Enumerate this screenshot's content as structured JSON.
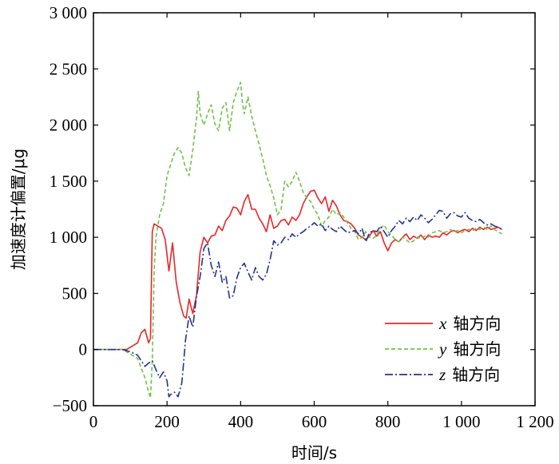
{
  "chart_data": {
    "type": "line",
    "xlabel": "时间/s",
    "ylabel": "加速度计偏置/μg",
    "xlim": [
      0,
      1200
    ],
    "ylim": [
      -500,
      3000
    ],
    "x_ticks": [
      0,
      200,
      400,
      600,
      800,
      1000,
      1200
    ],
    "x_tick_labels": [
      "0",
      "200",
      "400",
      "600",
      "800",
      "1 000",
      "1 200"
    ],
    "y_ticks": [
      -500,
      0,
      500,
      1000,
      1500,
      2000,
      2500,
      3000
    ],
    "y_tick_labels": [
      "−500",
      "0",
      "500",
      "1 000",
      "1 500",
      "2 000",
      "2 500",
      "3 000"
    ],
    "grid": false,
    "legend_position": "bottom-right",
    "legend_suffix": "轴方向",
    "series": [
      {
        "name": "x",
        "color": "#e8262a",
        "dash": "solid",
        "points": [
          [
            0,
            0
          ],
          [
            90,
            0
          ],
          [
            120,
            60
          ],
          [
            130,
            150
          ],
          [
            140,
            180
          ],
          [
            150,
            60
          ],
          [
            155,
            100
          ],
          [
            160,
            1050
          ],
          [
            165,
            1120
          ],
          [
            175,
            1100
          ],
          [
            185,
            1080
          ],
          [
            195,
            980
          ],
          [
            205,
            700
          ],
          [
            215,
            950
          ],
          [
            225,
            600
          ],
          [
            235,
            420
          ],
          [
            245,
            300
          ],
          [
            252,
            280
          ],
          [
            260,
            450
          ],
          [
            270,
            320
          ],
          [
            280,
            480
          ],
          [
            290,
            870
          ],
          [
            300,
            1000
          ],
          [
            310,
            950
          ],
          [
            320,
            1010
          ],
          [
            330,
            1020
          ],
          [
            340,
            1100
          ],
          [
            350,
            1060
          ],
          [
            360,
            1150
          ],
          [
            370,
            1190
          ],
          [
            380,
            1270
          ],
          [
            390,
            1260
          ],
          [
            400,
            1200
          ],
          [
            410,
            1320
          ],
          [
            420,
            1380
          ],
          [
            430,
            1250
          ],
          [
            440,
            1250
          ],
          [
            450,
            1170
          ],
          [
            460,
            1120
          ],
          [
            470,
            1050
          ],
          [
            480,
            1200
          ],
          [
            490,
            1080
          ],
          [
            500,
            1100
          ],
          [
            510,
            1150
          ],
          [
            520,
            1160
          ],
          [
            530,
            1110
          ],
          [
            540,
            1180
          ],
          [
            550,
            1150
          ],
          [
            560,
            1200
          ],
          [
            570,
            1300
          ],
          [
            580,
            1360
          ],
          [
            590,
            1410
          ],
          [
            600,
            1420
          ],
          [
            610,
            1350
          ],
          [
            620,
            1300
          ],
          [
            630,
            1360
          ],
          [
            640,
            1230
          ],
          [
            650,
            1330
          ],
          [
            660,
            1280
          ],
          [
            670,
            1200
          ],
          [
            680,
            1150
          ],
          [
            690,
            1140
          ],
          [
            700,
            1120
          ],
          [
            710,
            1080
          ],
          [
            720,
            1020
          ],
          [
            730,
            1000
          ],
          [
            740,
            980
          ],
          [
            750,
            1010
          ],
          [
            760,
            1060
          ],
          [
            770,
            1010
          ],
          [
            780,
            1050
          ],
          [
            790,
            950
          ],
          [
            800,
            880
          ],
          [
            810,
            950
          ],
          [
            820,
            980
          ],
          [
            830,
            960
          ],
          [
            840,
            1000
          ],
          [
            850,
            1030
          ],
          [
            860,
            980
          ],
          [
            870,
            1010
          ],
          [
            880,
            990
          ],
          [
            890,
            1020
          ],
          [
            900,
            980
          ],
          [
            910,
            1020
          ],
          [
            920,
            1000
          ],
          [
            930,
            1010
          ],
          [
            940,
            1000
          ],
          [
            950,
            1040
          ],
          [
            960,
            1020
          ],
          [
            970,
            1050
          ],
          [
            980,
            1060
          ],
          [
            990,
            1040
          ],
          [
            1000,
            1060
          ],
          [
            1010,
            1070
          ],
          [
            1020,
            1050
          ],
          [
            1030,
            1080
          ],
          [
            1040,
            1060
          ],
          [
            1050,
            1090
          ],
          [
            1060,
            1070
          ],
          [
            1070,
            1090
          ],
          [
            1080,
            1070
          ],
          [
            1090,
            1080
          ],
          [
            1100,
            1090
          ],
          [
            1110,
            1070
          ]
        ]
      },
      {
        "name": "y",
        "color": "#73c04a",
        "dash": "5 3",
        "points": [
          [
            0,
            0
          ],
          [
            80,
            0
          ],
          [
            100,
            -40
          ],
          [
            120,
            -80
          ],
          [
            140,
            -250
          ],
          [
            150,
            -380
          ],
          [
            155,
            -430
          ],
          [
            160,
            -100
          ],
          [
            165,
            700
          ],
          [
            170,
            1000
          ],
          [
            180,
            1200
          ],
          [
            190,
            1300
          ],
          [
            200,
            1550
          ],
          [
            210,
            1650
          ],
          [
            220,
            1750
          ],
          [
            230,
            1800
          ],
          [
            240,
            1750
          ],
          [
            250,
            1620
          ],
          [
            260,
            1550
          ],
          [
            270,
            1780
          ],
          [
            280,
            2050
          ],
          [
            285,
            2300
          ],
          [
            290,
            2100
          ],
          [
            300,
            2000
          ],
          [
            310,
            2100
          ],
          [
            320,
            2180
          ],
          [
            330,
            2010
          ],
          [
            340,
            1950
          ],
          [
            350,
            2150
          ],
          [
            360,
            2200
          ],
          [
            370,
            1950
          ],
          [
            380,
            2200
          ],
          [
            390,
            2300
          ],
          [
            400,
            2380
          ],
          [
            405,
            2200
          ],
          [
            410,
            2100
          ],
          [
            420,
            2250
          ],
          [
            430,
            2080
          ],
          [
            440,
            1950
          ],
          [
            450,
            1830
          ],
          [
            460,
            1700
          ],
          [
            470,
            1550
          ],
          [
            480,
            1460
          ],
          [
            490,
            1350
          ],
          [
            500,
            1200
          ],
          [
            510,
            1250
          ],
          [
            520,
            1500
          ],
          [
            530,
            1450
          ],
          [
            540,
            1500
          ],
          [
            550,
            1580
          ],
          [
            560,
            1500
          ],
          [
            570,
            1400
          ],
          [
            580,
            1350
          ],
          [
            590,
            1320
          ],
          [
            600,
            1250
          ],
          [
            610,
            1200
          ],
          [
            620,
            1100
          ],
          [
            630,
            1150
          ],
          [
            640,
            1180
          ],
          [
            650,
            1250
          ],
          [
            660,
            1200
          ],
          [
            670,
            1220
          ],
          [
            680,
            1180
          ],
          [
            690,
            1130
          ],
          [
            700,
            1080
          ],
          [
            710,
            1050
          ],
          [
            720,
            980
          ],
          [
            730,
            1000
          ],
          [
            740,
            1050
          ],
          [
            750,
            1000
          ],
          [
            760,
            990
          ],
          [
            770,
            1020
          ],
          [
            780,
            1080
          ],
          [
            790,
            1110
          ],
          [
            800,
            1050
          ],
          [
            810,
            1020
          ],
          [
            820,
            980
          ],
          [
            830,
            960
          ],
          [
            840,
            1000
          ],
          [
            850,
            980
          ],
          [
            860,
            950
          ],
          [
            870,
            970
          ],
          [
            880,
            1000
          ],
          [
            890,
            990
          ],
          [
            900,
            1010
          ],
          [
            910,
            1000
          ],
          [
            920,
            1040
          ],
          [
            930,
            1050
          ],
          [
            940,
            1060
          ],
          [
            950,
            1040
          ],
          [
            960,
            1050
          ],
          [
            970,
            1070
          ],
          [
            980,
            1050
          ],
          [
            990,
            1060
          ],
          [
            1000,
            1040
          ],
          [
            1010,
            1060
          ],
          [
            1020,
            1070
          ],
          [
            1030,
            1060
          ],
          [
            1040,
            1080
          ],
          [
            1050,
            1070
          ],
          [
            1060,
            1090
          ],
          [
            1070,
            1070
          ],
          [
            1080,
            1100
          ],
          [
            1090,
            1070
          ],
          [
            1100,
            1050
          ],
          [
            1110,
            1030
          ]
        ]
      },
      {
        "name": "z",
        "color": "#23338f",
        "dash": "10 3 2 3",
        "points": [
          [
            0,
            0
          ],
          [
            80,
            0
          ],
          [
            100,
            -20
          ],
          [
            120,
            -50
          ],
          [
            130,
            -100
          ],
          [
            140,
            -150
          ],
          [
            150,
            -120
          ],
          [
            160,
            -100
          ],
          [
            170,
            -180
          ],
          [
            180,
            -250
          ],
          [
            190,
            -200
          ],
          [
            200,
            -280
          ],
          [
            205,
            -420
          ],
          [
            210,
            -400
          ],
          [
            220,
            -380
          ],
          [
            230,
            -420
          ],
          [
            240,
            -300
          ],
          [
            245,
            -120
          ],
          [
            250,
            80
          ],
          [
            260,
            300
          ],
          [
            270,
            200
          ],
          [
            280,
            470
          ],
          [
            290,
            650
          ],
          [
            300,
            900
          ],
          [
            310,
            950
          ],
          [
            320,
            750
          ],
          [
            330,
            650
          ],
          [
            340,
            780
          ],
          [
            350,
            600
          ],
          [
            360,
            650
          ],
          [
            370,
            460
          ],
          [
            380,
            480
          ],
          [
            390,
            640
          ],
          [
            400,
            730
          ],
          [
            410,
            770
          ],
          [
            420,
            690
          ],
          [
            430,
            620
          ],
          [
            440,
            730
          ],
          [
            450,
            650
          ],
          [
            460,
            620
          ],
          [
            470,
            670
          ],
          [
            480,
            800
          ],
          [
            490,
            970
          ],
          [
            500,
            930
          ],
          [
            510,
            950
          ],
          [
            520,
            1000
          ],
          [
            530,
            980
          ],
          [
            540,
            1030
          ],
          [
            550,
            1000
          ],
          [
            560,
            1030
          ],
          [
            570,
            1050
          ],
          [
            580,
            1080
          ],
          [
            590,
            1100
          ],
          [
            600,
            1130
          ],
          [
            610,
            1100
          ],
          [
            620,
            1120
          ],
          [
            630,
            1060
          ],
          [
            640,
            1100
          ],
          [
            650,
            1070
          ],
          [
            660,
            1050
          ],
          [
            670,
            1100
          ],
          [
            680,
            1070
          ],
          [
            690,
            1040
          ],
          [
            700,
            1050
          ],
          [
            710,
            1060
          ],
          [
            720,
            1030
          ],
          [
            730,
            1080
          ],
          [
            740,
            960
          ],
          [
            750,
            1040
          ],
          [
            760,
            1060
          ],
          [
            770,
            1050
          ],
          [
            780,
            1100
          ],
          [
            790,
            1050
          ],
          [
            800,
            1000
          ],
          [
            810,
            1060
          ],
          [
            820,
            1100
          ],
          [
            830,
            1150
          ],
          [
            840,
            1120
          ],
          [
            850,
            1170
          ],
          [
            860,
            1140
          ],
          [
            870,
            1180
          ],
          [
            880,
            1150
          ],
          [
            890,
            1200
          ],
          [
            900,
            1170
          ],
          [
            910,
            1130
          ],
          [
            920,
            1160
          ],
          [
            930,
            1200
          ],
          [
            940,
            1240
          ],
          [
            950,
            1230
          ],
          [
            960,
            1170
          ],
          [
            970,
            1210
          ],
          [
            980,
            1220
          ],
          [
            990,
            1190
          ],
          [
            1000,
            1180
          ],
          [
            1010,
            1220
          ],
          [
            1020,
            1170
          ],
          [
            1030,
            1150
          ],
          [
            1040,
            1140
          ],
          [
            1050,
            1160
          ],
          [
            1060,
            1130
          ],
          [
            1070,
            1110
          ],
          [
            1080,
            1120
          ],
          [
            1090,
            1100
          ],
          [
            1100,
            1090
          ],
          [
            1110,
            1070
          ]
        ]
      }
    ]
  }
}
